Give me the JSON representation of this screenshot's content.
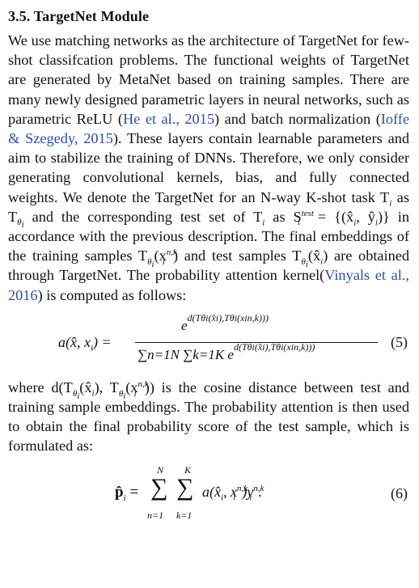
{
  "section": {
    "heading": "3.5. TargetNet Module"
  },
  "paragraph1": {
    "text_a": "We use matching networks as the architecture of TargetNet for few-shot classifcation problems. The functional weights of TargetNet are generated by MetaNet based on training samples.  There are many newly designed parametric layers in neural networks, such as parametric ReLU (",
    "cite1": "He et al., 2015",
    "text_b": ") and batch normalization (",
    "cite2": "Ioffe & Szegedy, 2015",
    "text_c": "). These layers contain learnable parameters and aim to stabilize the training of DNNs.  Therefore, we only consider generating convolutional kernels, bias, and fully connected weights. We denote the TargetNet for an N-way K-shot task T",
    "text_d": " as T",
    "text_e": " and the corresponding test set of T",
    "text_f": " as S",
    "text_g": " = {(x̂",
    "text_h": ", ŷ",
    "text_i": ")} in accordance with the previous description. The final embeddings of the training samples T",
    "text_j": "(x",
    "text_k": ") and test samples T",
    "text_l": "(x̂",
    "text_m": ") are obtained through TargetNet. The probability attention kernel(",
    "cite3": "Vinyals et al., 2016",
    "text_n": ") is computed as follows:"
  },
  "equation5": {
    "lhs": "a(x̂, x",
    "lhs_end": ") =",
    "numerator": "e",
    "numerator_exp": "d(Tθi(x̂i),Tθi(xin,k)))",
    "denominator": "∑n=1N ∑k=1K e",
    "denominator_exp": "d(Tθi(x̂i),Tθi(xin,k)))",
    "number": "(5)"
  },
  "paragraph2": {
    "text_a": "where d(T",
    "text_b": "(x̂",
    "text_c": "), T",
    "text_d": "(x",
    "text_e": ")) is the cosine distance between test and training sample embeddings.  The probability attention is then used to obtain the final probability score of the test sample, which is formulated as:"
  },
  "equation6": {
    "lhs": "p̂",
    "eq": " = ",
    "sum_n_top": "N",
    "sum_k_top": "K",
    "sum_n_bottom": "n=1",
    "sum_k_bottom": "k=1",
    "body": "a(x̂",
    "body2": ", x",
    "body3": ")y",
    "end": ".",
    "number": "(6)"
  }
}
